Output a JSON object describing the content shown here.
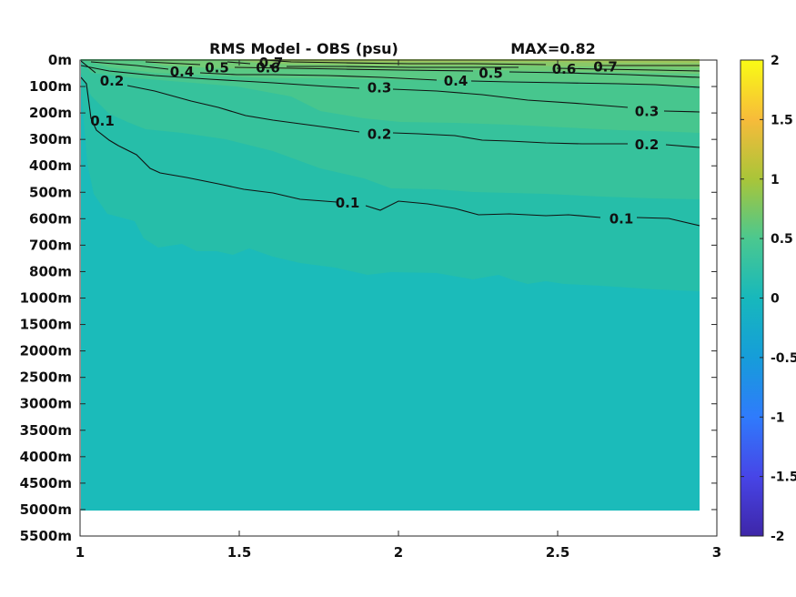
{
  "chart_data": {
    "type": "contour",
    "title": "RMS Model - OBS (psu)",
    "annotation": "MAX=0.82",
    "x_ticks": [
      "1",
      "1.5",
      "2",
      "2.5",
      "3"
    ],
    "xlim": [
      1,
      3
    ],
    "y_ticks": [
      "0m",
      "100m",
      "200m",
      "300m",
      "400m",
      "500m",
      "600m",
      "700m",
      "800m",
      "1000m",
      "1500m",
      "2000m",
      "2500m",
      "3000m",
      "3500m",
      "4000m",
      "4500m",
      "5000m",
      "5500m"
    ],
    "data_x_max": 2.95,
    "data_depth_max_label": "5000m",
    "colorbar": {
      "min": -2,
      "max": 2,
      "ticks": [
        "2",
        "1.5",
        "1",
        "0.5",
        "0",
        "-0.5",
        "-1",
        "-1.5",
        "-2"
      ],
      "colormap": "parula"
    },
    "contour_levels": [
      0.1,
      0.2,
      0.3,
      0.4,
      0.5,
      0.6,
      0.7
    ],
    "contour_labels": [
      {
        "text": "0.7",
        "x": 1.6,
        "depth_index": 0.1
      },
      {
        "text": "0.6",
        "x": 1.59,
        "depth_index": 0.3
      },
      {
        "text": "0.5",
        "x": 1.43,
        "depth_index": 0.3
      },
      {
        "text": "0.4",
        "x": 1.32,
        "depth_index": 0.45
      },
      {
        "text": "0.2",
        "x": 1.1,
        "depth_index": 0.8
      },
      {
        "text": "0.1",
        "x": 1.07,
        "depth_index": 2.3
      },
      {
        "text": "0.3",
        "x": 1.94,
        "depth_index": 1.05
      },
      {
        "text": "0.2",
        "x": 1.94,
        "depth_index": 2.8
      },
      {
        "text": "0.1",
        "x": 1.84,
        "depth_index": 5.4
      },
      {
        "text": "0.4",
        "x": 2.18,
        "depth_index": 0.8
      },
      {
        "text": "0.5",
        "x": 2.29,
        "depth_index": 0.5
      },
      {
        "text": "0.6",
        "x": 2.52,
        "depth_index": 0.35
      },
      {
        "text": "0.7",
        "x": 2.65,
        "depth_index": 0.25
      },
      {
        "text": "0.3",
        "x": 2.78,
        "depth_index": 1.95
      },
      {
        "text": "0.2",
        "x": 2.78,
        "depth_index": 3.2
      },
      {
        "text": "0.1",
        "x": 2.7,
        "depth_index": 6.0
      }
    ]
  }
}
